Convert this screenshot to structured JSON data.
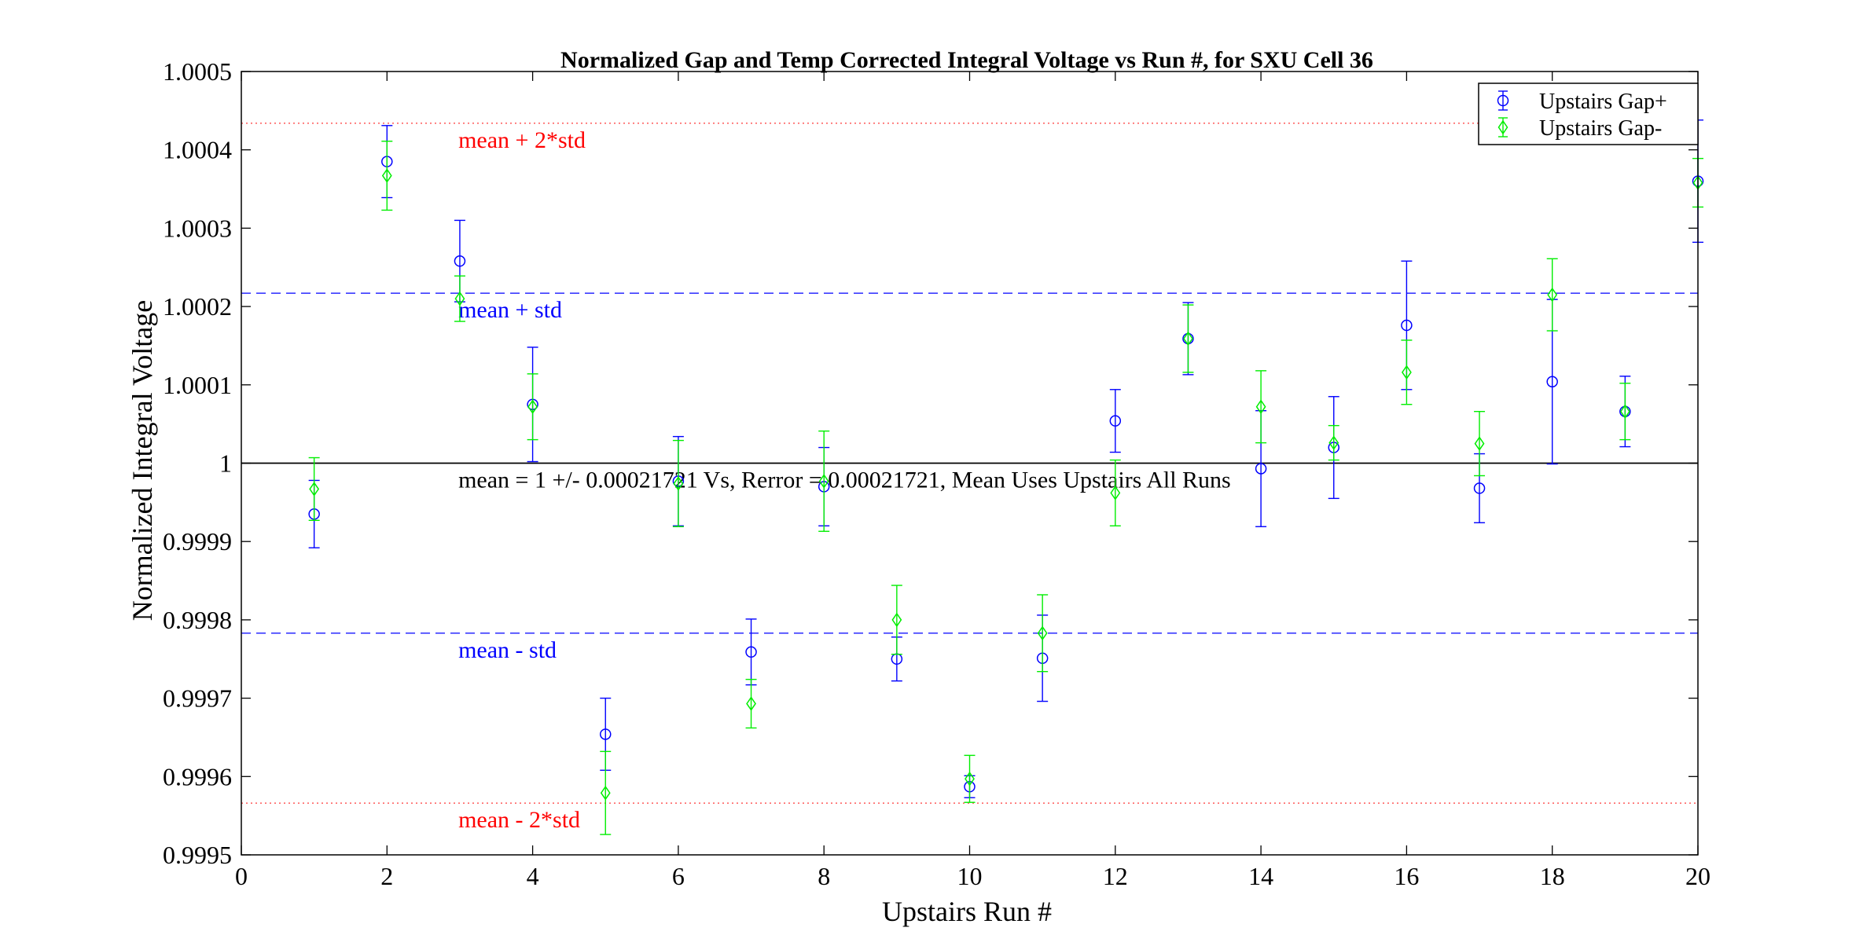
{
  "colors": {
    "gap_plus": "#0000ff",
    "gap_minus": "#00ee00",
    "mean_line": "#000000",
    "std_line": "#3b3bff",
    "two_std_line": "#ff6666",
    "std_text": "#0000ff",
    "two_std_text": "#ff0000"
  },
  "chart_data": {
    "type": "scatter",
    "title": "Normalized Gap and Temp Corrected Integral Voltage vs Run #, for SXU Cell 36",
    "xlabel": "Upstairs Run #",
    "ylabel": "Normalized Integral Voltage",
    "xlim": [
      0,
      20
    ],
    "ylim": [
      0.9995,
      1.0005
    ],
    "xticks": [
      0,
      2,
      4,
      6,
      8,
      10,
      12,
      14,
      16,
      18,
      20
    ],
    "xtick_labels": [
      "0",
      "2",
      "4",
      "6",
      "8",
      "10",
      "12",
      "14",
      "16",
      "18",
      "20"
    ],
    "yticks": [
      0.9995,
      0.9996,
      0.9997,
      0.9998,
      0.9999,
      1.0,
      1.0001,
      1.0002,
      1.0003,
      1.0004,
      1.0005
    ],
    "ytick_labels": [
      "0.9995",
      "0.9996",
      "0.9997",
      "0.9998",
      "0.9999",
      "1",
      "1.0001",
      "1.0002",
      "1.0003",
      "1.0004",
      "1.0005"
    ],
    "grid": false,
    "legend": {
      "position": "top-right",
      "entries": [
        "Upstairs Gap+",
        "Upstairs Gap-"
      ]
    },
    "series": [
      {
        "name": "Upstairs Gap+",
        "marker": "circle",
        "color": "#0000ff",
        "x": [
          1,
          2,
          3,
          4,
          5,
          6,
          7,
          8,
          9,
          10,
          11,
          12,
          13,
          14,
          15,
          16,
          17,
          18,
          19,
          20
        ],
        "y": [
          0.999935,
          1.000385,
          1.000258,
          1.000075,
          0.999654,
          0.999977,
          0.999759,
          0.99997,
          0.99975,
          0.999587,
          0.999751,
          1.000054,
          1.000159,
          0.999993,
          1.00002,
          1.000176,
          0.999968,
          1.000104,
          1.000066,
          1.00036
        ],
        "err": [
          4.3e-05,
          4.6e-05,
          5.2e-05,
          7.3e-05,
          4.6e-05,
          5.7e-05,
          4.2e-05,
          5e-05,
          2.8e-05,
          1.4e-05,
          5.5e-05,
          4e-05,
          4.6e-05,
          7.4e-05,
          6.5e-05,
          8.2e-05,
          4.4e-05,
          0.000105,
          4.5e-05,
          7.8e-05
        ]
      },
      {
        "name": "Upstairs Gap-",
        "marker": "diamond",
        "color": "#00ee00",
        "x": [
          1,
          2,
          3,
          4,
          5,
          6,
          7,
          8,
          9,
          10,
          11,
          12,
          13,
          14,
          15,
          16,
          17,
          18,
          19,
          20
        ],
        "y": [
          0.999967,
          1.000367,
          1.00021,
          1.000072,
          0.999579,
          0.999974,
          0.999693,
          0.999977,
          0.9998,
          0.999597,
          0.999783,
          0.999962,
          1.000159,
          1.000072,
          1.000026,
          1.000116,
          1.000025,
          1.000215,
          1.000066,
          1.000358
        ],
        "err": [
          4e-05,
          4.4e-05,
          2.9e-05,
          4.2e-05,
          5.3e-05,
          5.5e-05,
          3.1e-05,
          6.4e-05,
          4.4e-05,
          3e-05,
          4.9e-05,
          4.2e-05,
          4.3e-05,
          4.6e-05,
          2.2e-05,
          4.1e-05,
          4.1e-05,
          4.6e-05,
          3.6e-05,
          3.1e-05
        ]
      }
    ],
    "reference_lines": [
      {
        "y": 1.000434,
        "style": "dotted",
        "color": "#ff6666",
        "label": "mean + 2*std",
        "label_color": "#ff0000"
      },
      {
        "y": 1.000217,
        "style": "dashed",
        "color": "#3b3bff",
        "label": "mean + std",
        "label_color": "#0000ff"
      },
      {
        "y": 1.0,
        "style": "solid",
        "color": "#000000",
        "label": "mean = 1 +/- 0.00021721 Vs, Rerror = 0.00021721, Mean Uses Upstairs All Runs",
        "label_color": "#000000"
      },
      {
        "y": 0.999783,
        "style": "dashed",
        "color": "#3b3bff",
        "label": "mean - std",
        "label_color": "#0000ff"
      },
      {
        "y": 0.999566,
        "style": "dotted",
        "color": "#ff6666",
        "label": "mean - 2*std",
        "label_color": "#ff0000"
      }
    ]
  }
}
